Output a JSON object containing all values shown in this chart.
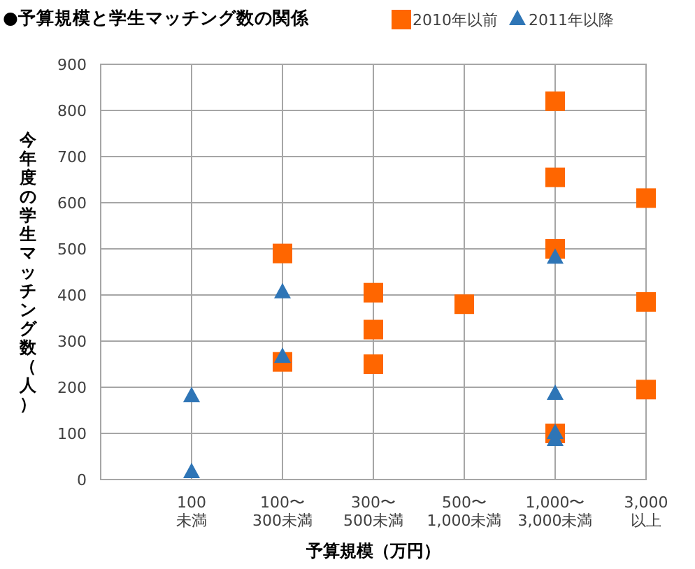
{
  "chart_data": {
    "type": "scatter",
    "title": "●予算規模と学生マッチング数の関係",
    "xlabel": "予算規模（万円）",
    "ylabel": "今年度の学生マッチング数（人）",
    "categories": [
      null,
      "100\n未満",
      "100〜\n300未満",
      "300〜\n500未満",
      "500〜\n1,000未満",
      "1,000〜\n3,000未満",
      "3,000\n以上"
    ],
    "series": [
      {
        "name": "2010年以前",
        "color": "#ff6600",
        "marker": "square",
        "x": [
          "100〜\n300未満",
          "100〜\n300未満",
          "300〜\n500未満",
          "300〜\n500未満",
          "300〜\n500未満",
          "500〜\n1,000未満",
          "1,000〜\n3,000未満",
          "1,000〜\n3,000未満",
          "1,000〜\n3,000未満",
          "1,000〜\n3,000未満",
          "3,000\n以上",
          "3,000\n以上",
          "3,000\n以上"
        ],
        "values": [
          490,
          255,
          405,
          325,
          250,
          380,
          820,
          655,
          500,
          100,
          610,
          385,
          195
        ]
      },
      {
        "name": "2011年以降",
        "color": "#2e75b6",
        "marker": "triangle",
        "x": [
          "100\n未満",
          "100\n未満",
          "100〜\n300未満",
          "100〜\n300未満",
          "1,000〜\n3,000未満",
          "1,000〜\n3,000未満",
          "1,000〜\n3,000未満",
          "1,000〜\n3,000未満"
        ],
        "values": [
          180,
          15,
          405,
          265,
          480,
          185,
          100,
          85
        ]
      }
    ],
    "ylim": [
      0,
      900
    ],
    "yticks": [
      0,
      100,
      200,
      300,
      400,
      500,
      600,
      700,
      800,
      900
    ],
    "grid": true,
    "legend": "top right"
  }
}
